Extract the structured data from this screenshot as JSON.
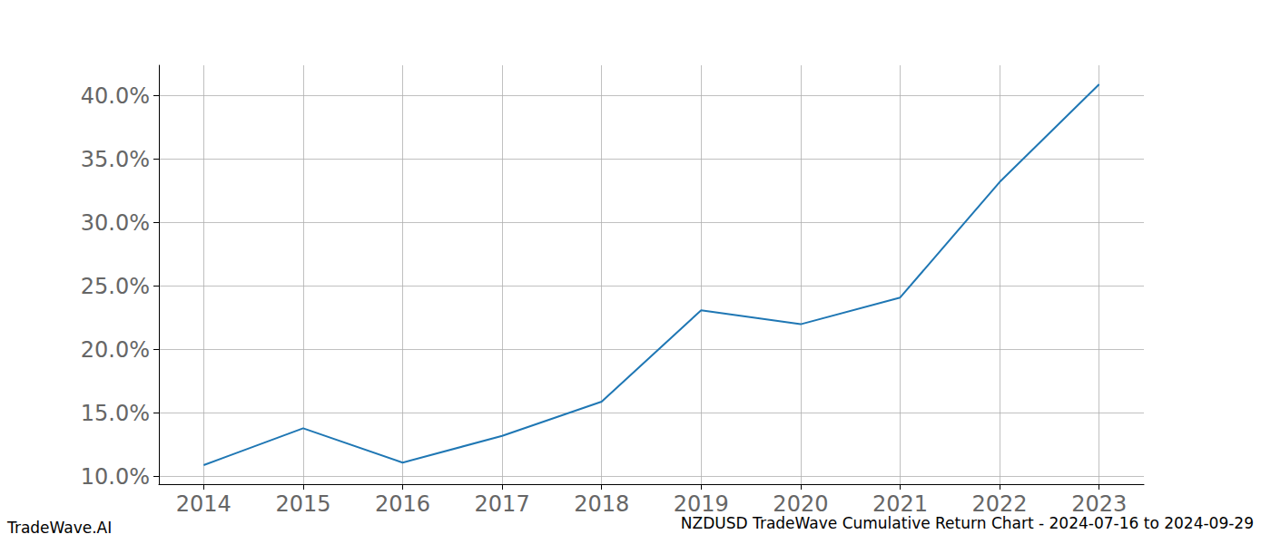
{
  "chart_data": {
    "type": "line",
    "title": "NZDUSD TradeWave Cumulative Return Chart - 2024-07-16 to 2024-09-29",
    "annotations": [
      "TradeWave.AI"
    ],
    "x": [
      2014,
      2015,
      2016,
      2017,
      2018,
      2019,
      2020,
      2021,
      2022,
      2023
    ],
    "values": [
      10.9,
      13.8,
      11.1,
      13.2,
      15.9,
      23.1,
      22.0,
      24.1,
      33.2,
      40.9
    ],
    "color": "#1f77b4",
    "xlim": [
      2013.55,
      2023.45
    ],
    "xticks": [
      2014,
      2015,
      2016,
      2017,
      2018,
      2019,
      2020,
      2021,
      2022,
      2023
    ],
    "ylim": [
      9.4,
      42.4
    ],
    "yticks": [
      {
        "value": 10,
        "label": "10.0%"
      },
      {
        "value": 15,
        "label": "15.0%"
      },
      {
        "value": 20,
        "label": "20.0%"
      },
      {
        "value": 25,
        "label": "25.0%"
      },
      {
        "value": 30,
        "label": "30.0%"
      },
      {
        "value": 35,
        "label": "35.0%"
      },
      {
        "value": 40,
        "label": "40.0%"
      }
    ],
    "grid": true
  }
}
